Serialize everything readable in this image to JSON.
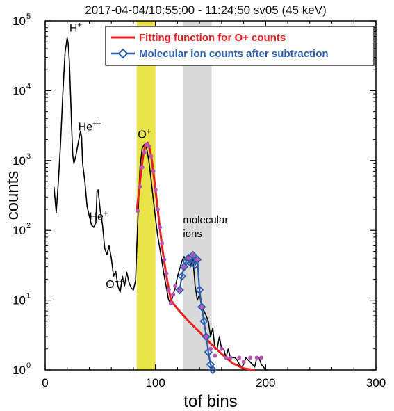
{
  "chart_data": {
    "type": "line",
    "title": "2017-04-04/10:55:00 - 11:24:50  sv05 (45 keV)",
    "xlabel": "tof bins",
    "ylabel": "counts",
    "xlim": [
      0,
      300
    ],
    "ylim": [
      1,
      100000
    ],
    "y_scale": "log",
    "x_ticks": [
      "0",
      "100",
      "200",
      "300"
    ],
    "y_ticks": [
      {
        "base": "10",
        "exp": "0"
      },
      {
        "base": "10",
        "exp": "1"
      },
      {
        "base": "10",
        "exp": "2"
      },
      {
        "base": "10",
        "exp": "3"
      },
      {
        "base": "10",
        "exp": "4"
      },
      {
        "base": "10",
        "exp": "5"
      }
    ],
    "legend_position": "top-right",
    "shaded_regions": [
      {
        "x0": 83,
        "x1": 100,
        "color": "#e8e44a"
      },
      {
        "x0": 125,
        "x1": 151,
        "color": "#d9d9d9"
      }
    ],
    "peak_labels": [
      {
        "base": "H",
        "sup": "+",
        "x": 22,
        "y": 70000
      },
      {
        "base": "He",
        "sup": "++",
        "x": 30,
        "y": 2700
      },
      {
        "base": "He",
        "sup": "+",
        "x": 40,
        "y": 140
      },
      {
        "base": "O",
        "sup": "++",
        "x": 55,
        "y": 15
      },
      {
        "base": "O",
        "sup": "+",
        "x": 84,
        "y": 2100
      }
    ],
    "annotation": {
      "line1": "molecular",
      "line2": "ions",
      "x": 125,
      "y": 100
    },
    "series": [
      {
        "name": "",
        "color": "#000000",
        "x": [
          8,
          10,
          12,
          14,
          16,
          18,
          20,
          21,
          22,
          23,
          24,
          25,
          26,
          28,
          30,
          32,
          33,
          34,
          36,
          38,
          40,
          42,
          44,
          46,
          47,
          48,
          50,
          52,
          54,
          56,
          58,
          60,
          62,
          64,
          66,
          68,
          70,
          72,
          74,
          76,
          78,
          80,
          82,
          84,
          86,
          88,
          90,
          92,
          94,
          96,
          98,
          100,
          102,
          104,
          106,
          108,
          110,
          112,
          114,
          116,
          118,
          120,
          122,
          124,
          126,
          128,
          130,
          132,
          134,
          136,
          138,
          140,
          142,
          144,
          146,
          148,
          150,
          152,
          154,
          156,
          158,
          160,
          162,
          164,
          166,
          168,
          170,
          172,
          174,
          176,
          178,
          180,
          182,
          184,
          186,
          188,
          190,
          192,
          194,
          196,
          198,
          200,
          202
        ],
        "y": [
          420,
          180,
          500,
          1800,
          9000,
          35000,
          58000,
          45000,
          25000,
          9000,
          3000,
          1200,
          900,
          1200,
          1800,
          2600,
          2200,
          900,
          500,
          220,
          160,
          120,
          110,
          130,
          360,
          380,
          190,
          120,
          55,
          45,
          60,
          40,
          22,
          26,
          16,
          13,
          22,
          16,
          25,
          18,
          15,
          14,
          19,
          140,
          800,
          1500,
          1700,
          1500,
          1000,
          550,
          280,
          150,
          85,
          55,
          35,
          22,
          15,
          10,
          9,
          12,
          15,
          22,
          28,
          36,
          42,
          36,
          45,
          30,
          40,
          16,
          10,
          12,
          8,
          7,
          6,
          5,
          3,
          4,
          2,
          2,
          3,
          2,
          2,
          1.5,
          2,
          1.5,
          1.5,
          1.5,
          1.4,
          1.2,
          1.1,
          1.2,
          1.5,
          1.4,
          1.3,
          1.2,
          1.1,
          1.5,
          1.5,
          1.2,
          1.1,
          1.0,
          1.0
        ]
      },
      {
        "name": "Fitting function for O+ counts",
        "color": "#e8201f",
        "x": [
          83,
          85,
          87,
          89,
          91,
          93,
          95,
          97,
          99,
          101,
          103,
          105,
          107,
          109,
          111,
          114,
          120,
          130,
          140,
          150,
          160,
          170,
          180,
          190
        ],
        "y": [
          190,
          350,
          700,
          1200,
          1700,
          1800,
          1450,
          950,
          520,
          280,
          150,
          80,
          45,
          28,
          18,
          10,
          7.5,
          5,
          3.5,
          2.4,
          1.7,
          1.25,
          1.05,
          1.0
        ]
      },
      {
        "name": "Molecular ion counts after subtraction",
        "color": "#2a5fb0",
        "x": [
          122,
          124,
          126,
          128,
          130,
          132,
          134,
          136,
          138,
          140,
          142,
          144,
          146,
          148,
          150,
          152
        ],
        "y": [
          14,
          22,
          30,
          36,
          40,
          34,
          44,
          32,
          38,
          14,
          8,
          5,
          3,
          1.8,
          1.2,
          1.0
        ]
      }
    ],
    "markers": {
      "color": "#b455b4",
      "points": [
        [
          84,
          190
        ],
        [
          86,
          420
        ],
        [
          88,
          800
        ],
        [
          90,
          1300
        ],
        [
          92,
          1700
        ],
        [
          94,
          1600
        ],
        [
          96,
          1150
        ],
        [
          98,
          700
        ],
        [
          100,
          380
        ],
        [
          102,
          200
        ],
        [
          104,
          110
        ],
        [
          106,
          65
        ],
        [
          108,
          38
        ],
        [
          110,
          24
        ],
        [
          112,
          14
        ],
        [
          114,
          9
        ],
        [
          116,
          12
        ],
        [
          118,
          16
        ],
        [
          122,
          14
        ],
        [
          126,
          30
        ],
        [
          130,
          40
        ],
        [
          134,
          44
        ],
        [
          138,
          38
        ],
        [
          142,
          8
        ],
        [
          146,
          3
        ],
        [
          150,
          2
        ],
        [
          154,
          1.6
        ],
        [
          160,
          2
        ],
        [
          164,
          1.5
        ],
        [
          168,
          1.5
        ],
        [
          176,
          1.5
        ],
        [
          180,
          1.3
        ],
        [
          186,
          1.5
        ],
        [
          192,
          1.5
        ],
        [
          196,
          1.5
        ]
      ]
    }
  }
}
